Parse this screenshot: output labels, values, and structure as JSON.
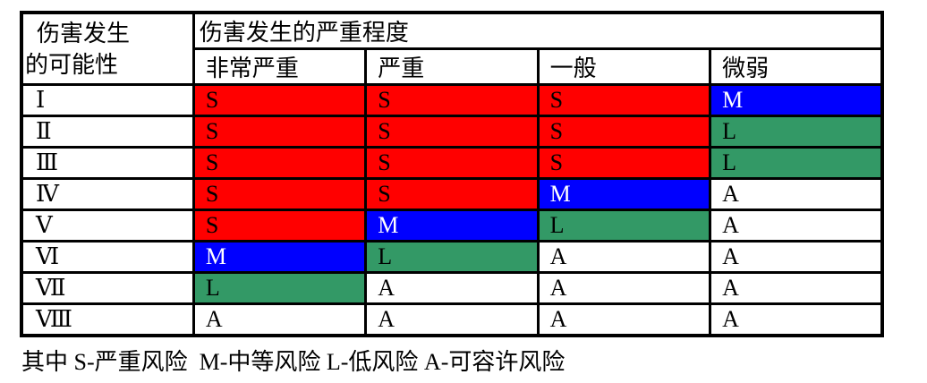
{
  "table": {
    "likelihood_header": {
      "line1": "伤害发生",
      "line2": "的可能性"
    },
    "severity_header": "伤害发生的严重程度",
    "severity_levels": [
      "非常严重",
      "严重",
      "一般",
      "微弱"
    ],
    "rows": [
      {
        "likelihood": "Ⅰ",
        "cells": [
          "S",
          "S",
          "S",
          "M"
        ]
      },
      {
        "likelihood": "Ⅱ",
        "cells": [
          "S",
          "S",
          "S",
          "L"
        ]
      },
      {
        "likelihood": "Ⅲ",
        "cells": [
          "S",
          "S",
          "S",
          "L"
        ]
      },
      {
        "likelihood": "Ⅳ",
        "cells": [
          "S",
          "S",
          "M",
          "A"
        ]
      },
      {
        "likelihood": "Ⅴ",
        "cells": [
          "S",
          "M",
          "L",
          "A"
        ]
      },
      {
        "likelihood": "Ⅵ",
        "cells": [
          "M",
          "L",
          "A",
          "A"
        ]
      },
      {
        "likelihood": "Ⅶ",
        "cells": [
          "L",
          "A",
          "A",
          "A"
        ]
      },
      {
        "likelihood": "Ⅷ",
        "cells": [
          "A",
          "A",
          "A",
          "A"
        ]
      }
    ]
  },
  "colors": {
    "S": {
      "bg": "#FF0000",
      "fg": "#000000"
    },
    "M": {
      "bg": "#0000FF",
      "fg": "#FFFFFF"
    },
    "L": {
      "bg": "#339966",
      "fg": "#000000"
    },
    "A": {
      "bg": "#FFFFFF",
      "fg": "#000000"
    }
  },
  "legend": {
    "text": "其中 S-严重风险  M-中等风险 L-低风险 A-可容许风险",
    "prefix": "其中",
    "items": [
      {
        "code": "S",
        "label": "严重风险"
      },
      {
        "code": "M",
        "label": "中等风险"
      },
      {
        "code": "L",
        "label": "低风险"
      },
      {
        "code": "A",
        "label": "可容许风险"
      }
    ]
  }
}
